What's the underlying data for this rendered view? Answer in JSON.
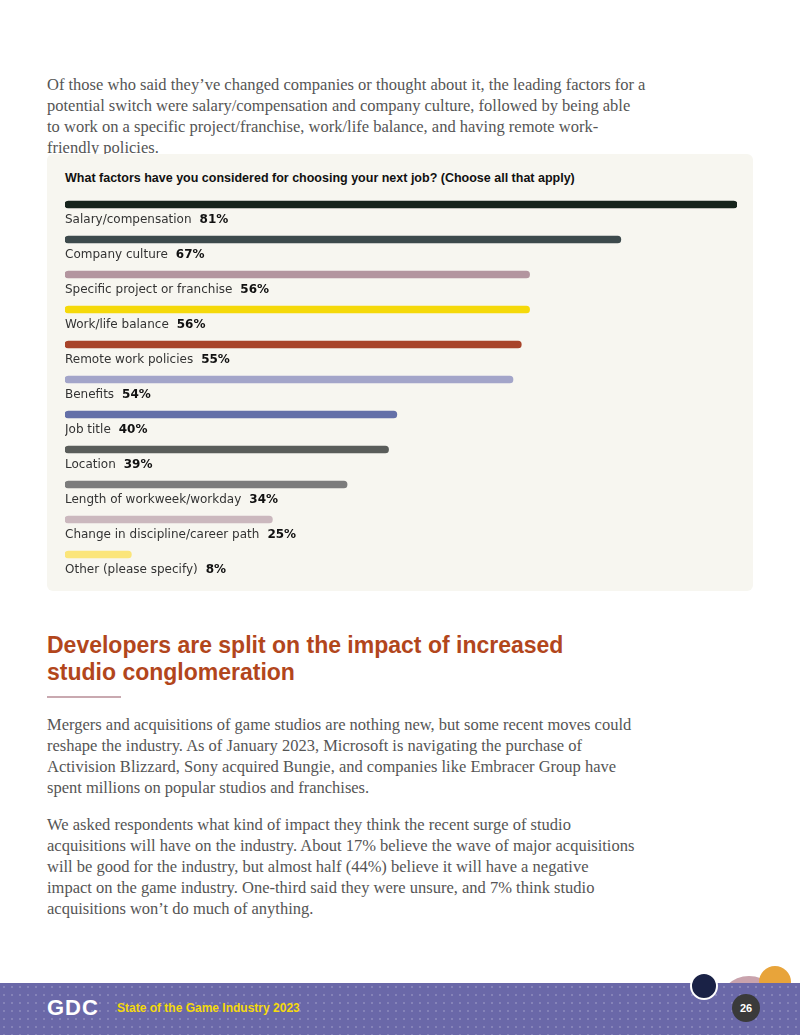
{
  "intro": "Of those who said they’ve changed companies or thought about it, the leading factors for a potential switch were salary/compensation and company culture, followed by being able to work on a specific project/franchise, work/life balance, and having remote work-friendly policies.",
  "chart_data": {
    "type": "bar",
    "title": "What factors have you considered for choosing your next job? (Choose all that apply)",
    "orientation": "horizontal",
    "categories": [
      "Salary/compensation",
      "Company culture",
      "Specific project or franchise",
      "Work/life balance",
      "Remote work policies",
      "Benefits",
      "Job title",
      "Location",
      "Length of workweek/workday",
      "Change in discipline/career path",
      "Other (please specify)"
    ],
    "values": [
      81,
      67,
      56,
      56,
      55,
      54,
      40,
      39,
      34,
      25,
      8
    ],
    "value_labels": [
      "81%",
      "67%",
      "56%",
      "56%",
      "55%",
      "54%",
      "40%",
      "39%",
      "34%",
      "25%",
      "8%"
    ],
    "colors": [
      "#16241c",
      "#3d4a4c",
      "#b3959f",
      "#f5d90a",
      "#a8442a",
      "#a3a5c9",
      "#6470a8",
      "#5a5d5a",
      "#7c7c7c",
      "#cbb8be",
      "#fbe57a"
    ],
    "xlim": [
      0,
      81
    ],
    "data_labels": true,
    "tick_labels": false,
    "grid": false
  },
  "section": {
    "heading": "Developers are split on the impact of increased studio conglomeration",
    "paragraphs": [
      "Mergers and acquisitions of game studios are nothing new, but some recent moves could reshape the industry. As of January 2023, Microsoft is navigating the purchase of Activision Blizzard, Sony acquired Bungie, and companies like Embracer Group have spent millions on popular studios and franchises.",
      "We asked respondents what kind of impact they think the recent surge of studio acquisitions will have on the industry. About 17% believe the wave of major acquisitions will be good for the industry, but almost half (44%) believe it will have a negative impact on the game industry. One-third said they were unsure, and 7% think studio acquisitions won’t do much of anything."
    ]
  },
  "footer": {
    "logo": "GDC",
    "title": "State of the Game Industry 2023",
    "page": 26
  }
}
